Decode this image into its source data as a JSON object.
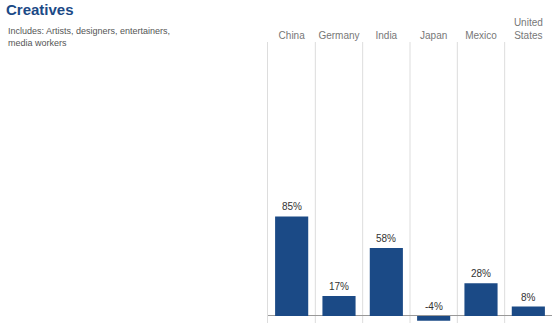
{
  "chart_data": {
    "type": "bar",
    "title": "Creatives",
    "subtitle": "Includes: Artists, designers, entertainers, media workers",
    "categories": [
      "China",
      "Germany",
      "India",
      "Japan",
      "Mexico",
      "United States"
    ],
    "values": [
      85,
      17,
      58,
      -4,
      28,
      8
    ],
    "value_labels": [
      "85%",
      "17%",
      "58%",
      "-4%",
      "28%",
      "8%"
    ],
    "data_labels": true,
    "color": "#1b4a86",
    "ylim": [
      -6,
      234
    ],
    "tick_labels": "x",
    "grid": false
  }
}
